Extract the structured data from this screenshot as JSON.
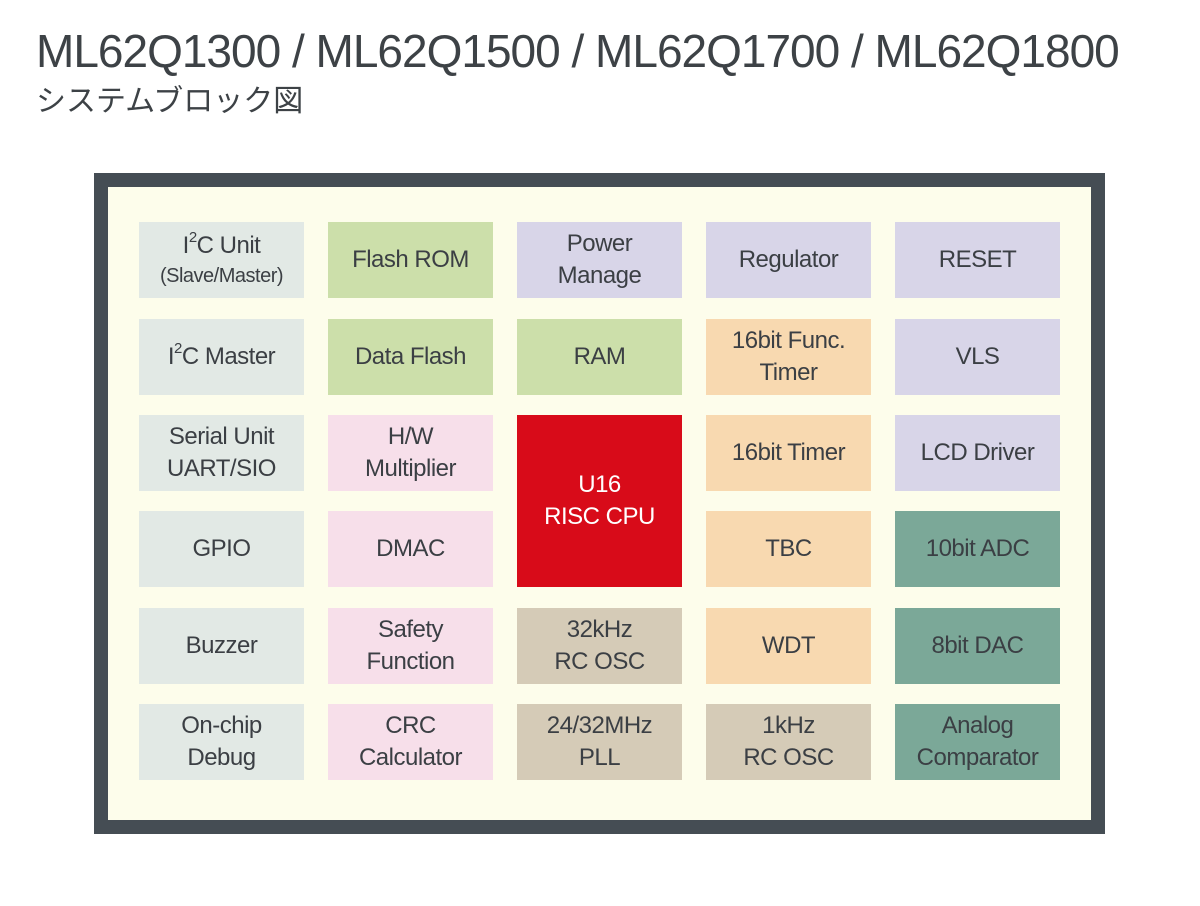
{
  "title": "ML62Q1300 / ML62Q1500 / ML62Q1700 / ML62Q1800",
  "subtitle": "システムブロック図",
  "blocks": {
    "i2c_unit": {
      "pre": "I",
      "sup": "2",
      "post": "C Unit",
      "line2": "(Slave/Master)"
    },
    "flash_rom": {
      "line1": "Flash ROM"
    },
    "power_manage": {
      "line1": "Power",
      "line2": "Manage"
    },
    "regulator": {
      "line1": "Regulator"
    },
    "reset": {
      "line1": "RESET"
    },
    "i2c_master": {
      "pre": "I",
      "sup": "2",
      "post": "C Master"
    },
    "data_flash": {
      "line1": "Data Flash"
    },
    "ram": {
      "line1": "RAM"
    },
    "func_timer": {
      "line1": "16bit Func.",
      "line2": "Timer"
    },
    "vls": {
      "line1": "VLS"
    },
    "serial_unit": {
      "line1": "Serial Unit",
      "line2": "UART/SIO"
    },
    "hw_multiplier": {
      "line1": "H/W",
      "line2": "Multiplier"
    },
    "cpu": {
      "line1": "U16",
      "line2": "RISC CPU"
    },
    "timer16": {
      "line1": "16bit Timer"
    },
    "lcd_driver": {
      "line1": "LCD Driver"
    },
    "gpio": {
      "line1": "GPIO"
    },
    "dmac": {
      "line1": "DMAC"
    },
    "tbc": {
      "line1": "TBC"
    },
    "adc": {
      "line1": "10bit ADC"
    },
    "buzzer": {
      "line1": "Buzzer"
    },
    "safety": {
      "line1": "Safety",
      "line2": "Function"
    },
    "osc32k": {
      "line1": "32kHz",
      "line2": "RC OSC"
    },
    "wdt": {
      "line1": "WDT"
    },
    "dac": {
      "line1": "8bit DAC"
    },
    "debug": {
      "line1": "On-chip",
      "line2": "Debug"
    },
    "crc": {
      "line1": "CRC",
      "line2": "Calculator"
    },
    "pll": {
      "line1": "24/32MHz",
      "line2": "PLL"
    },
    "osc1k": {
      "line1": "1kHz",
      "line2": "RC OSC"
    },
    "comparator": {
      "line1": "Analog",
      "line2": "Comparator"
    }
  },
  "colors": {
    "frame": "#454d54",
    "chip_bg": "#fdfdeb",
    "gray": "#e2e9e5",
    "green": "#ccdfaa",
    "lavender": "#d8d5e8",
    "pink": "#f7dfea",
    "peach": "#f8d9b0",
    "tan": "#d5cbb7",
    "teal": "#7ba898",
    "cpu_red": "#d80b19"
  }
}
